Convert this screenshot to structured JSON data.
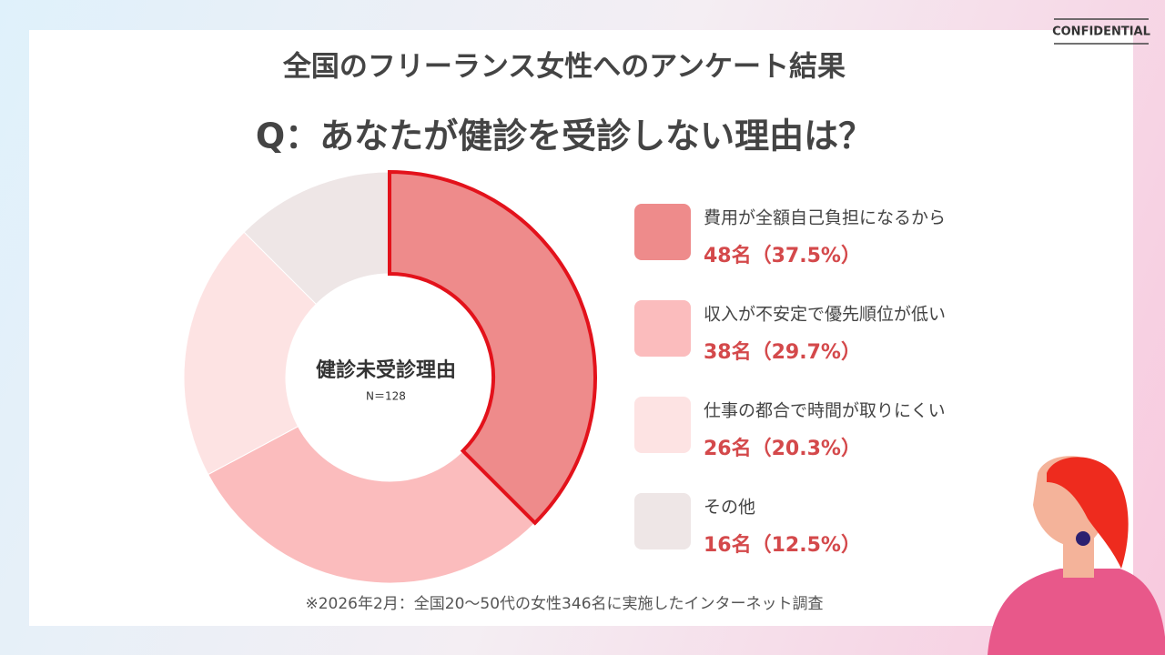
{
  "chart_data": {
    "type": "donut",
    "badge": "CONFIDENTIAL",
    "title": "全国のフリーランス女性へのアンケート結果",
    "subtitle": "Q：あなたが健診を受診しない理由は？",
    "center_label": "健診未受診理由",
    "center_sublabel": "N＝128",
    "note": "※2026年2月：全国20〜50代の女性346名に実施したインターネット調査",
    "categories": [
      "費用が全額自己負担になるから",
      "収入が不安定で優先順位が低い",
      "仕事の都合で時間が取りにくい",
      "その他"
    ],
    "values": [
      48,
      38,
      26,
      16
    ],
    "value_labels": [
      "48名（37.5%）",
      "38名（29.7%）",
      "26名（20.3%）",
      "16名（12.5%）"
    ],
    "colors": [
      "#ee8b8b",
      "#fbbcbd",
      "#fde3e3",
      "#eee6e6"
    ],
    "highlight": 0,
    "highlight_color": "#e3121b"
  }
}
